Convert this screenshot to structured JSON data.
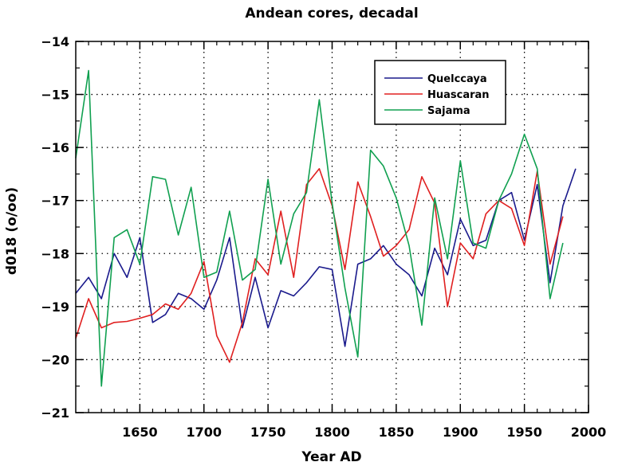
{
  "chart_data": {
    "type": "line",
    "title": "Andean cores, decadal",
    "xlabel": "Year AD",
    "ylabel": "d018 (o/oo)",
    "xlim": [
      1600,
      2000
    ],
    "ylim": [
      -21,
      -14
    ],
    "xticks": [
      1650,
      1700,
      1750,
      1800,
      1850,
      1900,
      1950,
      2000
    ],
    "yticks": [
      -21,
      -20,
      -19,
      -18,
      -17,
      -16,
      -15,
      -14
    ],
    "grid": true,
    "legend_position": "top-right",
    "series": [
      {
        "name": "Quelccaya",
        "color": "#1a1a8c",
        "x": [
          1600,
          1610,
          1620,
          1630,
          1640,
          1650,
          1660,
          1670,
          1680,
          1690,
          1700,
          1710,
          1720,
          1730,
          1740,
          1750,
          1760,
          1770,
          1780,
          1790,
          1800,
          1810,
          1820,
          1830,
          1840,
          1850,
          1860,
          1870,
          1880,
          1890,
          1900,
          1910,
          1920,
          1930,
          1940,
          1950,
          1960,
          1970,
          1980,
          1990
        ],
        "values": [
          -18.75,
          -18.45,
          -18.85,
          -18.0,
          -18.45,
          -17.7,
          -19.3,
          -19.15,
          -18.75,
          -18.85,
          -19.05,
          -18.5,
          -17.7,
          -19.4,
          -18.45,
          -19.4,
          -18.7,
          -18.8,
          -18.55,
          -18.25,
          -18.3,
          -19.75,
          -18.2,
          -18.1,
          -17.85,
          -18.2,
          -18.4,
          -18.8,
          -17.9,
          -18.4,
          -17.35,
          -17.85,
          -17.75,
          -17.0,
          -16.85,
          -17.75,
          -16.7,
          -18.55,
          -17.1,
          -16.4
        ]
      },
      {
        "name": "Huascaran",
        "color": "#e02020",
        "x": [
          1600,
          1610,
          1620,
          1630,
          1640,
          1650,
          1660,
          1670,
          1680,
          1690,
          1700,
          1710,
          1720,
          1730,
          1740,
          1750,
          1760,
          1770,
          1780,
          1790,
          1800,
          1810,
          1820,
          1830,
          1840,
          1850,
          1860,
          1870,
          1880,
          1890,
          1900,
          1910,
          1920,
          1930,
          1940,
          1950,
          1960,
          1970,
          1980
        ],
        "values": [
          -19.6,
          -18.85,
          -19.4,
          -19.3,
          -19.28,
          -19.22,
          -19.15,
          -18.95,
          -19.05,
          -18.75,
          -18.15,
          -19.55,
          -20.05,
          -19.3,
          -18.1,
          -18.4,
          -17.2,
          -18.45,
          -16.7,
          -16.4,
          -17.1,
          -18.3,
          -16.65,
          -17.3,
          -18.05,
          -17.85,
          -17.55,
          -16.55,
          -17.05,
          -19.0,
          -17.8,
          -18.1,
          -17.25,
          -17.0,
          -17.15,
          -17.85,
          -16.45,
          -18.2,
          -17.3
        ]
      },
      {
        "name": "Sajama",
        "color": "#10a050",
        "x": [
          1600,
          1610,
          1620,
          1630,
          1640,
          1650,
          1660,
          1670,
          1680,
          1690,
          1700,
          1710,
          1720,
          1730,
          1740,
          1750,
          1760,
          1770,
          1780,
          1790,
          1800,
          1810,
          1820,
          1830,
          1840,
          1850,
          1860,
          1870,
          1880,
          1890,
          1900,
          1910,
          1920,
          1930,
          1940,
          1950,
          1960,
          1970,
          1980
        ],
        "values": [
          -16.2,
          -14.55,
          -20.5,
          -17.7,
          -17.55,
          -18.2,
          -16.55,
          -16.6,
          -17.65,
          -16.75,
          -18.45,
          -18.35,
          -17.2,
          -18.5,
          -18.3,
          -16.6,
          -18.2,
          -17.25,
          -16.85,
          -15.1,
          -17.05,
          -18.65,
          -19.95,
          -16.05,
          -16.35,
          -16.95,
          -17.85,
          -19.35,
          -16.95,
          -18.1,
          -16.25,
          -17.8,
          -17.9,
          -17.0,
          -16.5,
          -15.75,
          -16.4,
          -18.85,
          -17.8
        ]
      }
    ]
  }
}
